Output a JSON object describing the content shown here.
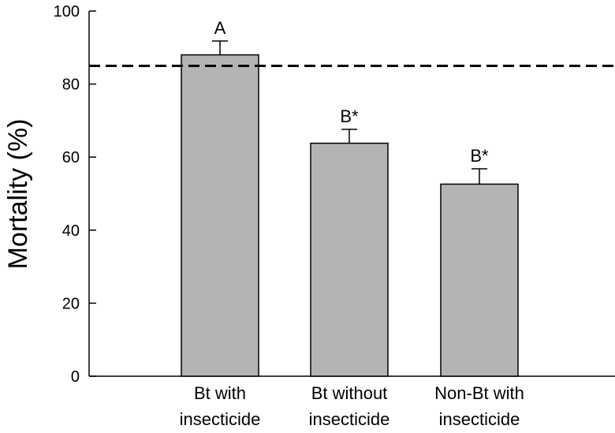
{
  "chart_data": {
    "type": "bar",
    "title": "",
    "xlabel": "",
    "ylabel": "Mortality (%)",
    "ylim": [
      0,
      100
    ],
    "yticks": [
      0,
      20,
      40,
      60,
      80,
      100
    ],
    "categories": [
      [
        "Bt with",
        "insecticide"
      ],
      [
        "Bt without",
        "insecticide"
      ],
      [
        "Non-Bt with",
        "insecticide"
      ]
    ],
    "values": [
      88,
      63.8,
      52.6
    ],
    "errors": [
      3.8,
      3.8,
      4.2
    ],
    "significance_labels": [
      "A",
      "B*",
      "B*"
    ],
    "reference_line": {
      "value": 85,
      "style": "dashed"
    },
    "bar_color": "#b4b4b4",
    "grid": false
  }
}
